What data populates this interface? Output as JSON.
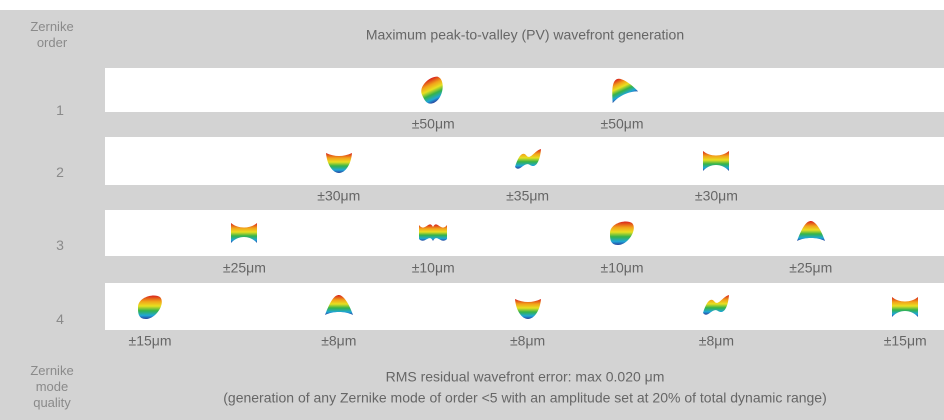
{
  "header": {
    "first_column": [
      "Zernike",
      "order"
    ],
    "title": "Maximum peak-to-valley (PV) wavefront generation"
  },
  "rows": [
    {
      "order": "1",
      "modes": [
        "±50μm",
        "±50μm"
      ]
    },
    {
      "order": "2",
      "modes": [
        "±30μm",
        "±35μm",
        "±30μm"
      ]
    },
    {
      "order": "3",
      "modes": [
        "±25μm",
        "±10μm",
        "±10μm",
        "±25μm"
      ]
    },
    {
      "order": "4",
      "modes": [
        "±15μm",
        "±8μm",
        "±8μm",
        "±8μm",
        "±15μm"
      ]
    }
  ],
  "footer": {
    "first_column": [
      "Zernike",
      "mode",
      "quality"
    ],
    "lines": [
      "RMS residual wavefront error: max 0.020 μm",
      "(generation of any Zernike mode of order <5 with an amplitude set at 20% of total dynamic range)"
    ]
  }
}
